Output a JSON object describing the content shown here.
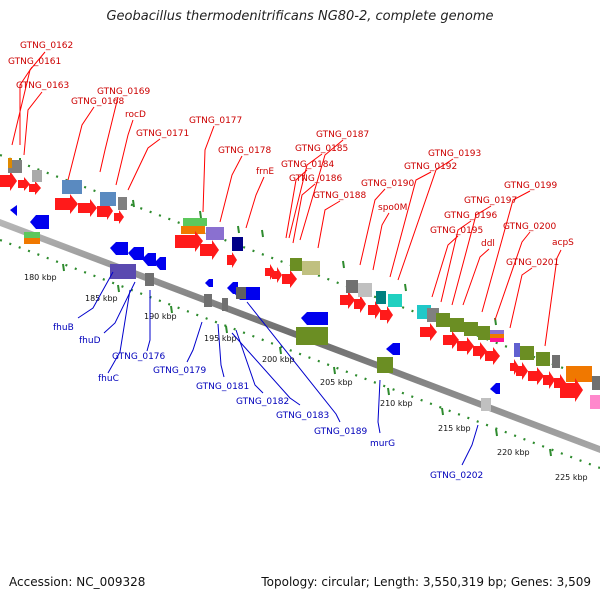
{
  "title": "Geobacillus thermodenitrificans NG80-2, complete genome",
  "footer": {
    "accession": "Accession: NC_009328",
    "topology": "Topology: circular; Length: 3,550,319 bp; Genes: 3,509"
  },
  "colors": {
    "forward_label": "#cc0000",
    "reverse_label": "#0000bb",
    "backbone": "#808080",
    "tick": "#2e8b2e"
  },
  "ticks": [
    "180 kbp",
    "185 kbp",
    "190 kbp",
    "195 kbp",
    "200 kbp",
    "205 kbp",
    "210 kbp",
    "215 kbp",
    "220 kbp",
    "225 kbp"
  ],
  "forward_genes": [
    "GTNG_0162",
    "GTNG_0161",
    "GTNG_0163",
    "GTNG_0169",
    "GTNG_0168",
    "rocD",
    "GTNG_0171",
    "GTNG_0177",
    "GTNG_0178",
    "frnE",
    "GTNG_0187",
    "GTNG_0185",
    "GTNG_0184",
    "GTNG_0186",
    "GTNG_0188",
    "GTNG_0190",
    "spo0M",
    "GTNG_0193",
    "GTNG_0192",
    "GTNG_0199",
    "GTNG_0197",
    "GTNG_0196",
    "GTNG_0195",
    "ddl",
    "GTNG_0200",
    "GTNG_0201",
    "acpS"
  ],
  "reverse_genes": [
    "fhuB",
    "fhuD",
    "fhuC",
    "GTNG_0176",
    "GTNG_0179",
    "GTNG_0181",
    "GTNG_0182",
    "GTNG_0183",
    "GTNG_0189",
    "murG",
    "GTNG_0202"
  ]
}
